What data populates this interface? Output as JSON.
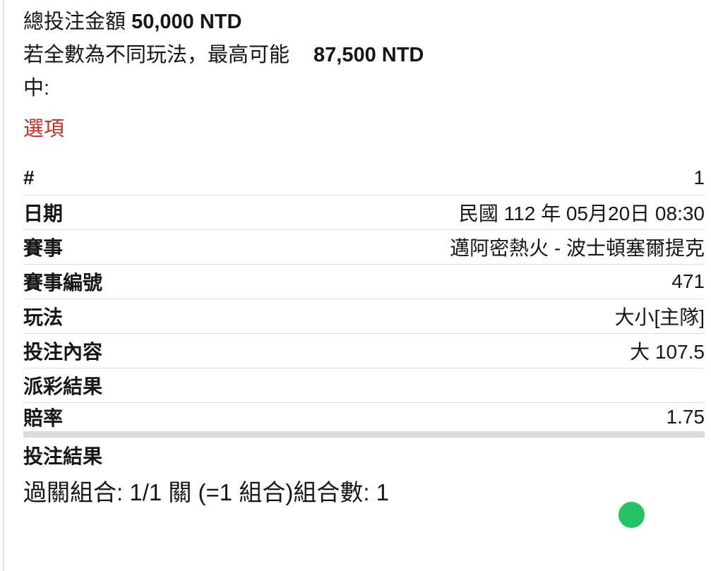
{
  "summary": {
    "total_label": "總投注金額 ",
    "total_amount": "50,000 NTD",
    "max_label": "若全數為不同玩法，最高可能",
    "max_amount": "87,500 NTD",
    "win_label": "中:"
  },
  "section": {
    "options_title": "選項"
  },
  "bet_table": {
    "rows": [
      {
        "label": "#",
        "value": "1"
      },
      {
        "label": "日期",
        "value": "民國 112 年 05月20日 08:30"
      },
      {
        "label": "賽事",
        "value": "邁阿密熱火 - 波士頓塞爾提克"
      },
      {
        "label": "賽事編號",
        "value": "471"
      },
      {
        "label": "玩法",
        "value": "大小[主隊]"
      },
      {
        "label": "投注內容",
        "value": "大 107.5"
      },
      {
        "label": "派彩結果",
        "value": ""
      },
      {
        "label": "賠率",
        "value": "1.75"
      },
      {
        "label": "投注結果",
        "value": ""
      }
    ]
  },
  "footer": {
    "parlay_text": "過關組合: 1/1 關 (=1 組合)組合數: 1"
  },
  "colors": {
    "options_title_red": "#cc2a25",
    "status_green": "#24c364",
    "divider_gray": "#dedede",
    "thick_bar_gray": "#dcdcdc"
  }
}
